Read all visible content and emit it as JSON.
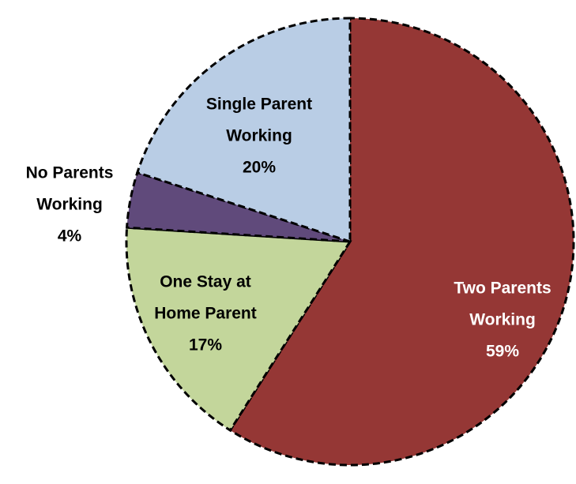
{
  "chart_data": {
    "type": "pie",
    "categories": [
      [
        "Two Parents",
        "Working"
      ],
      [
        "One Stay at",
        "Home Parent"
      ],
      [
        "No Parents",
        "Working"
      ],
      [
        "Single Parent",
        "Working"
      ]
    ],
    "values": [
      59,
      17,
      4,
      20
    ],
    "value_labels": [
      "59%",
      "17%",
      "4%",
      "20%"
    ],
    "colors": [
      "#953735",
      "#c3d69b",
      "#604a7b",
      "#b9cde5"
    ]
  }
}
